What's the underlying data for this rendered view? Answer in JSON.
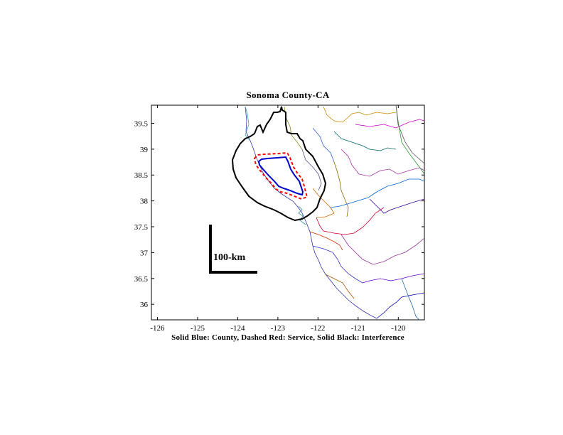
{
  "title": "Sonoma County-CA",
  "caption": "Solid Blue: County, Dashed Red: Service, Solid Black: Interference",
  "scale_bar_label": "100-km",
  "axes": {
    "x_range": [
      -126.15,
      -119.35
    ],
    "y_range": [
      35.7,
      39.85
    ],
    "x_ticks": [
      -126,
      -125,
      -124,
      -123,
      -122,
      -121,
      -120
    ],
    "y_ticks": [
      36,
      36.5,
      37,
      37.5,
      38,
      38.5,
      39,
      39.5
    ]
  },
  "legend": [
    {
      "label": "County",
      "style": "solid",
      "color": "#0000cc"
    },
    {
      "label": "Service",
      "style": "dashed",
      "color": "#ff0000"
    },
    {
      "label": "Interference",
      "style": "solid",
      "color": "#000000"
    }
  ],
  "colors": {
    "county": "#0000cc",
    "service": "#ff0000",
    "interference": "#000000",
    "frame": "#000000"
  }
}
